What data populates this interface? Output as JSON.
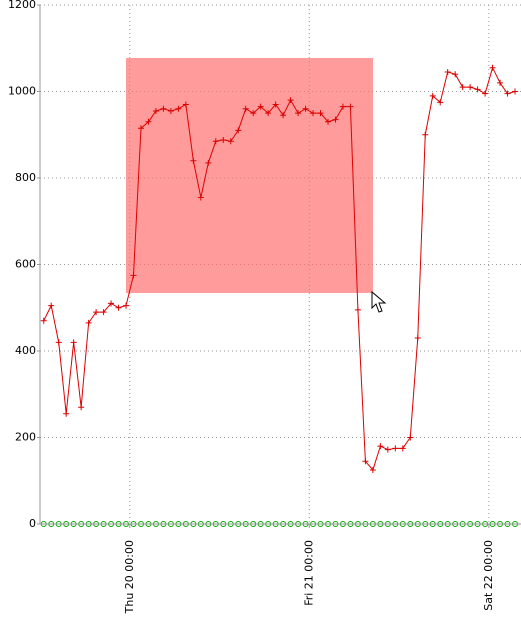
{
  "chart_data": {
    "type": "line",
    "x": [
      -11.5,
      -10.5,
      -9.5,
      -8.5,
      -7.5,
      -6.5,
      -5.5,
      -4.5,
      -3.5,
      -2.5,
      -1.5,
      -0.5,
      0.5,
      1.5,
      2.5,
      3.5,
      4.5,
      5.5,
      6.5,
      7.5,
      8.5,
      9.5,
      10.5,
      11.5,
      12.5,
      13.5,
      14.5,
      15.5,
      16.5,
      17.5,
      18.5,
      19.5,
      20.5,
      21.5,
      22.5,
      23.5,
      24.5,
      25.5,
      26.5,
      27.5,
      28.5,
      29.5,
      30.5,
      31.5,
      32.5,
      33.5,
      34.5,
      35.5,
      36.5,
      37.5,
      38.5,
      39.5,
      40.5,
      41.5,
      42.5,
      43.5,
      44.5,
      45.5,
      46.5,
      47.5,
      48.5,
      49.5,
      50.5,
      51.5
    ],
    "series": [
      {
        "color": "#dd0000",
        "values": [
          470,
          505,
          420,
          255,
          420,
          270,
          465,
          490,
          490,
          510,
          500,
          505,
          575,
          915,
          930,
          955,
          960,
          955,
          960,
          970,
          840,
          755,
          835,
          885,
          888,
          885,
          910,
          960,
          950,
          965,
          950,
          970,
          945,
          980,
          950,
          960,
          950,
          950,
          930,
          935,
          965,
          965,
          495,
          145,
          125,
          180,
          172,
          175,
          175,
          200,
          430,
          900,
          990,
          975,
          1045,
          1040,
          1010,
          1010,
          1005,
          995,
          1055,
          1020,
          995,
          1000
        ]
      },
      {
        "color": "#00aa00",
        "values": [
          0,
          0,
          0,
          0,
          0,
          0,
          0,
          0,
          0,
          0,
          0,
          0,
          0,
          0,
          0,
          0,
          0,
          0,
          0,
          0,
          0,
          0,
          0,
          0,
          0,
          0,
          0,
          0,
          0,
          0,
          0,
          0,
          0,
          0,
          0,
          0,
          0,
          0,
          0,
          0,
          0,
          0,
          0,
          0,
          0,
          0,
          0,
          0,
          0,
          0,
          0,
          0,
          0,
          0,
          0,
          0,
          0,
          0,
          0,
          0,
          0,
          0,
          0,
          0
        ]
      }
    ],
    "xlim": [
      -12,
      52.3
    ],
    "xticks": [
      {
        "value": 0,
        "label": "Thu 20 00:00"
      },
      {
        "value": 24,
        "label": "Fri 21 00:00"
      },
      {
        "value": 48,
        "label": "Sat 22 00:00"
      }
    ],
    "ylim": [
      0,
      1200
    ],
    "yticks": [
      0,
      200,
      400,
      600,
      800,
      1000,
      1200
    ],
    "grid": true
  }
}
